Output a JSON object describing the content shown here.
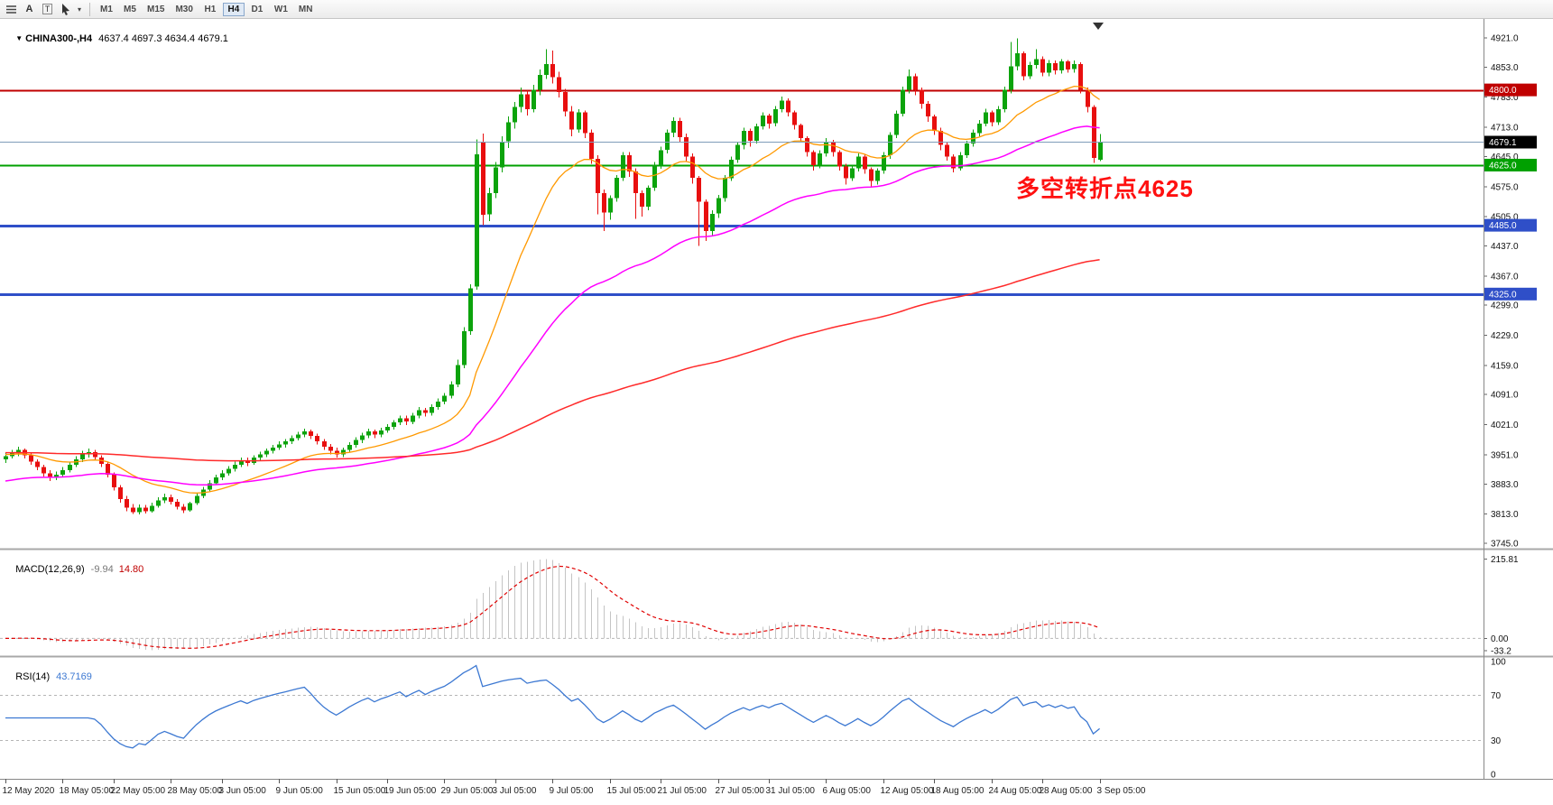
{
  "toolbar": {
    "icons": [
      {
        "name": "chart-list-icon"
      },
      {
        "name": "font-icon",
        "glyph": "A"
      },
      {
        "name": "text-label-icon",
        "glyph": "T"
      },
      {
        "name": "cursor-tool-icon"
      },
      {
        "name": "dropdown-caret-icon",
        "glyph": "▾"
      }
    ],
    "timeframes": [
      {
        "label": "M1"
      },
      {
        "label": "M5"
      },
      {
        "label": "M15"
      },
      {
        "label": "M30"
      },
      {
        "label": "H1"
      },
      {
        "label": "H4",
        "active": true
      },
      {
        "label": "D1"
      },
      {
        "label": "W1"
      },
      {
        "label": "MN"
      }
    ]
  },
  "header": {
    "collapse_icon": "▼",
    "symbol": "CHINA300-,H4",
    "ohlc": "4637.4 4697.3 4634.4 4679.1"
  },
  "chart_data": {
    "type": "candlestick",
    "symbol": "CHINA300-",
    "timeframe": "H4",
    "candle_colors": {
      "up": "#0ca30c",
      "down": "#e80f0f"
    },
    "price_axis_ticks": [
      "4921.0",
      "4853.0",
      "4783.0",
      "4713.0",
      "4645.0",
      "4575.0",
      "4505.0",
      "4437.0",
      "4367.0",
      "4299.0",
      "4229.0",
      "4159.0",
      "4091.0",
      "4021.0",
      "3951.0",
      "3883.0",
      "3813.0",
      "3745.0"
    ],
    "hlines": [
      {
        "price": 4800.0,
        "label": "4800.0",
        "color": "#c00000",
        "width": 2
      },
      {
        "price": 4625.0,
        "label": "4625.0",
        "color": "#00a000",
        "width": 2
      },
      {
        "price": 4485.0,
        "label": "4485.0",
        "color": "#2f4fc8",
        "width": 3
      },
      {
        "price": 4325.0,
        "label": "4325.0",
        "color": "#2f4fc8",
        "width": 3
      }
    ],
    "current_price": {
      "value": 4679.1,
      "label": "4679.1",
      "line_color": "#7f9db9",
      "badge_color": "#000000"
    },
    "moving_averages": [
      {
        "name": "ma-fast-orange",
        "period": 20,
        "seed": 3952,
        "color": "#ff9900",
        "width": 1.3
      },
      {
        "name": "ma-mid-magenta",
        "period": 60,
        "seed": 3888,
        "color": "#ff00ff",
        "width": 1.5
      },
      {
        "name": "ma-slow-red",
        "period": 220,
        "seed": 3956,
        "color": "#ff2a2a",
        "width": 1.5
      }
    ],
    "macd": {
      "title": "MACD(12,26,9)",
      "value_main": "-9.94",
      "value_signal": "14.80",
      "histogram_color": "#c4c4c4",
      "signal_color": "#e00000",
      "scale": [
        {
          "label": "215.81",
          "value": 215.81
        },
        {
          "label": "0.00",
          "value": 0.0
        },
        {
          "label": "-33.2",
          "value": -33.2
        }
      ]
    },
    "rsi": {
      "title": "RSI(14)",
      "value": "43.7169",
      "period": 14,
      "line_color": "#3c78d2",
      "levels": [
        {
          "label": "100",
          "value": 100
        },
        {
          "label": "70",
          "value": 70
        },
        {
          "label": "30",
          "value": 30
        },
        {
          "label": "0",
          "value": 0
        }
      ]
    },
    "annotation": {
      "text": "多空转折点4625",
      "color": "#ff1010"
    },
    "time_axis": [
      {
        "label": "12 May 2020",
        "bar": 0
      },
      {
        "label": "18 May 05:00",
        "bar": 9
      },
      {
        "label": "22 May 05:00",
        "bar": 17
      },
      {
        "label": "28 May 05:00",
        "bar": 26
      },
      {
        "label": "3 Jun 05:00",
        "bar": 34
      },
      {
        "label": "9 Jun 05:00",
        "bar": 43
      },
      {
        "label": "15 Jun 05:00",
        "bar": 52
      },
      {
        "label": "19 Jun 05:00",
        "bar": 60
      },
      {
        "label": "29 Jun 05:00",
        "bar": 69
      },
      {
        "label": "3 Jul 05:00",
        "bar": 77
      },
      {
        "label": "9 Jul 05:00",
        "bar": 86
      },
      {
        "label": "15 Jul 05:00",
        "bar": 95
      },
      {
        "label": "21 Jul 05:00",
        "bar": 103
      },
      {
        "label": "27 Jul 05:00",
        "bar": 112
      },
      {
        "label": "31 Jul 05:00",
        "bar": 120
      },
      {
        "label": "6 Aug 05:00",
        "bar": 129
      },
      {
        "label": "12 Aug 05:00",
        "bar": 138
      },
      {
        "label": "18 Aug 05:00",
        "bar": 146
      },
      {
        "label": "24 Aug 05:00",
        "bar": 155
      },
      {
        "label": "28 Aug 05:00",
        "bar": 163
      },
      {
        "label": "3 Sep 05:00",
        "bar": 172
      }
    ],
    "candles": [
      [
        3940,
        3956,
        3932,
        3948
      ],
      [
        3948,
        3962,
        3942,
        3955
      ],
      [
        3955,
        3970,
        3948,
        3962
      ],
      [
        3962,
        3966,
        3942,
        3950
      ],
      [
        3950,
        3955,
        3928,
        3935
      ],
      [
        3935,
        3940,
        3915,
        3922
      ],
      [
        3922,
        3928,
        3900,
        3908
      ],
      [
        3908,
        3915,
        3890,
        3898
      ],
      [
        3898,
        3912,
        3892,
        3905
      ],
      [
        3905,
        3922,
        3898,
        3915
      ],
      [
        3915,
        3935,
        3910,
        3928
      ],
      [
        3928,
        3948,
        3922,
        3940
      ],
      [
        3940,
        3960,
        3934,
        3952
      ],
      [
        3952,
        3965,
        3944,
        3957
      ],
      [
        3957,
        3962,
        3938,
        3945
      ],
      [
        3945,
        3950,
        3922,
        3930
      ],
      [
        3930,
        3935,
        3898,
        3905
      ],
      [
        3905,
        3910,
        3868,
        3875
      ],
      [
        3875,
        3880,
        3840,
        3848
      ],
      [
        3848,
        3855,
        3820,
        3828
      ],
      [
        3828,
        3836,
        3813,
        3818
      ],
      [
        3818,
        3835,
        3812,
        3828
      ],
      [
        3828,
        3834,
        3814,
        3820
      ],
      [
        3820,
        3840,
        3816,
        3832
      ],
      [
        3832,
        3852,
        3828,
        3845
      ],
      [
        3845,
        3860,
        3838,
        3852
      ],
      [
        3852,
        3858,
        3835,
        3842
      ],
      [
        3842,
        3848,
        3824,
        3830
      ],
      [
        3830,
        3836,
        3815,
        3822
      ],
      [
        3822,
        3842,
        3818,
        3838
      ],
      [
        3838,
        3862,
        3834,
        3855
      ],
      [
        3855,
        3876,
        3850,
        3870
      ],
      [
        3870,
        3892,
        3866,
        3885
      ],
      [
        3885,
        3905,
        3880,
        3898
      ],
      [
        3898,
        3915,
        3892,
        3908
      ],
      [
        3908,
        3925,
        3902,
        3918
      ],
      [
        3918,
        3935,
        3912,
        3928
      ],
      [
        3928,
        3945,
        3922,
        3938
      ],
      [
        3938,
        3944,
        3925,
        3932
      ],
      [
        3932,
        3950,
        3928,
        3944
      ],
      [
        3944,
        3958,
        3938,
        3952
      ],
      [
        3952,
        3966,
        3946,
        3960
      ],
      [
        3960,
        3974,
        3954,
        3968
      ],
      [
        3968,
        3982,
        3962,
        3975
      ],
      [
        3975,
        3988,
        3968,
        3982
      ],
      [
        3982,
        3996,
        3976,
        3990
      ],
      [
        3990,
        4004,
        3984,
        3998
      ],
      [
        3998,
        4012,
        3992,
        4005
      ],
      [
        4005,
        4010,
        3988,
        3995
      ],
      [
        3995,
        4000,
        3975,
        3982
      ],
      [
        3982,
        3988,
        3962,
        3970
      ],
      [
        3970,
        3976,
        3952,
        3960
      ],
      [
        3960,
        3968,
        3945,
        3952
      ],
      [
        3952,
        3968,
        3946,
        3962
      ],
      [
        3962,
        3980,
        3956,
        3974
      ],
      [
        3974,
        3992,
        3968,
        3985
      ],
      [
        3985,
        4002,
        3978,
        3996
      ],
      [
        3996,
        4012,
        3990,
        4005
      ],
      [
        4005,
        4010,
        3990,
        3998
      ],
      [
        3998,
        4014,
        3992,
        4008
      ],
      [
        4008,
        4022,
        4002,
        4016
      ],
      [
        4016,
        4032,
        4010,
        4026
      ],
      [
        4026,
        4042,
        4020,
        4036
      ],
      [
        4036,
        4042,
        4020,
        4028
      ],
      [
        4028,
        4048,
        4022,
        4042
      ],
      [
        4042,
        4062,
        4036,
        4055
      ],
      [
        4055,
        4060,
        4040,
        4048
      ],
      [
        4048,
        4068,
        4042,
        4062
      ],
      [
        4062,
        4082,
        4056,
        4075
      ],
      [
        4075,
        4095,
        4068,
        4088
      ],
      [
        4088,
        4122,
        4082,
        4115
      ],
      [
        4115,
        4172,
        4108,
        4160
      ],
      [
        4160,
        4248,
        4152,
        4238
      ],
      [
        4238,
        4348,
        4230,
        4338
      ],
      [
        4342,
        4685,
        4335,
        4650
      ],
      [
        4680,
        4698,
        4485,
        4510
      ],
      [
        4510,
        4572,
        4495,
        4560
      ],
      [
        4560,
        4632,
        4548,
        4620
      ],
      [
        4620,
        4692,
        4608,
        4680
      ],
      [
        4680,
        4738,
        4665,
        4725
      ],
      [
        4725,
        4772,
        4710,
        4760
      ],
      [
        4760,
        4805,
        4748,
        4790
      ],
      [
        4790,
        4798,
        4740,
        4755
      ],
      [
        4755,
        4812,
        4748,
        4800
      ],
      [
        4800,
        4848,
        4788,
        4835
      ],
      [
        4835,
        4895,
        4825,
        4860
      ],
      [
        4860,
        4892,
        4815,
        4830
      ],
      [
        4830,
        4842,
        4782,
        4795
      ],
      [
        4795,
        4802,
        4738,
        4750
      ],
      [
        4750,
        4762,
        4692,
        4708
      ],
      [
        4708,
        4755,
        4700,
        4748
      ],
      [
        4748,
        4752,
        4688,
        4700
      ],
      [
        4700,
        4708,
        4628,
        4640
      ],
      [
        4640,
        4648,
        4510,
        4560
      ],
      [
        4560,
        4568,
        4472,
        4515
      ],
      [
        4515,
        4555,
        4498,
        4548
      ],
      [
        4548,
        4602,
        4540,
        4595
      ],
      [
        4595,
        4655,
        4588,
        4648
      ],
      [
        4648,
        4655,
        4598,
        4610
      ],
      [
        4610,
        4618,
        4500,
        4560
      ],
      [
        4560,
        4566,
        4505,
        4528
      ],
      [
        4528,
        4578,
        4520,
        4572
      ],
      [
        4572,
        4632,
        4565,
        4625
      ],
      [
        4625,
        4668,
        4616,
        4660
      ],
      [
        4660,
        4708,
        4652,
        4700
      ],
      [
        4700,
        4736,
        4690,
        4728
      ],
      [
        4728,
        4735,
        4678,
        4690
      ],
      [
        4690,
        4698,
        4632,
        4645
      ],
      [
        4645,
        4652,
        4582,
        4595
      ],
      [
        4595,
        4600,
        4437,
        4540
      ],
      [
        4540,
        4545,
        4448,
        4472
      ],
      [
        4472,
        4520,
        4462,
        4512
      ],
      [
        4512,
        4556,
        4502,
        4548
      ],
      [
        4548,
        4602,
        4540,
        4595
      ],
      [
        4595,
        4645,
        4588,
        4638
      ],
      [
        4638,
        4680,
        4630,
        4672
      ],
      [
        4672,
        4712,
        4662,
        4705
      ],
      [
        4705,
        4710,
        4668,
        4682
      ],
      [
        4682,
        4722,
        4675,
        4715
      ],
      [
        4715,
        4748,
        4708,
        4740
      ],
      [
        4740,
        4745,
        4710,
        4722
      ],
      [
        4722,
        4762,
        4715,
        4755
      ],
      [
        4755,
        4785,
        4748,
        4775
      ],
      [
        4775,
        4780,
        4738,
        4748
      ],
      [
        4748,
        4752,
        4708,
        4718
      ],
      [
        4718,
        4722,
        4678,
        4688
      ],
      [
        4688,
        4692,
        4645,
        4655
      ],
      [
        4655,
        4660,
        4612,
        4625
      ],
      [
        4625,
        4660,
        4618,
        4652
      ],
      [
        4652,
        4688,
        4645,
        4680
      ],
      [
        4680,
        4684,
        4645,
        4655
      ],
      [
        4655,
        4660,
        4612,
        4622
      ],
      [
        4622,
        4628,
        4580,
        4595
      ],
      [
        4595,
        4625,
        4588,
        4618
      ],
      [
        4618,
        4652,
        4610,
        4645
      ],
      [
        4645,
        4650,
        4605,
        4615
      ],
      [
        4615,
        4620,
        4575,
        4588
      ],
      [
        4588,
        4618,
        4580,
        4612
      ],
      [
        4612,
        4655,
        4605,
        4648
      ],
      [
        4648,
        4702,
        4640,
        4695
      ],
      [
        4695,
        4752,
        4688,
        4745
      ],
      [
        4745,
        4808,
        4738,
        4800
      ],
      [
        4800,
        4848,
        4792,
        4832
      ],
      [
        4832,
        4838,
        4788,
        4800
      ],
      [
        4800,
        4806,
        4756,
        4768
      ],
      [
        4768,
        4774,
        4726,
        4738
      ],
      [
        4738,
        4742,
        4695,
        4705
      ],
      [
        4705,
        4712,
        4660,
        4672
      ],
      [
        4672,
        4678,
        4635,
        4645
      ],
      [
        4645,
        4650,
        4608,
        4618
      ],
      [
        4618,
        4655,
        4612,
        4648
      ],
      [
        4648,
        4682,
        4642,
        4675
      ],
      [
        4675,
        4708,
        4668,
        4700
      ],
      [
        4700,
        4730,
        4692,
        4722
      ],
      [
        4722,
        4756,
        4715,
        4748
      ],
      [
        4748,
        4752,
        4715,
        4725
      ],
      [
        4725,
        4762,
        4718,
        4755
      ],
      [
        4755,
        4808,
        4748,
        4800
      ],
      [
        4800,
        4912,
        4792,
        4855
      ],
      [
        4855,
        4920,
        4845,
        4885
      ],
      [
        4885,
        4890,
        4822,
        4832
      ],
      [
        4832,
        4865,
        4825,
        4858
      ],
      [
        4858,
        4895,
        4850,
        4872
      ],
      [
        4872,
        4878,
        4832,
        4840
      ],
      [
        4840,
        4870,
        4832,
        4862
      ],
      [
        4862,
        4868,
        4836,
        4845
      ],
      [
        4845,
        4872,
        4838,
        4866
      ],
      [
        4866,
        4870,
        4840,
        4848
      ],
      [
        4848,
        4868,
        4840,
        4860
      ],
      [
        4860,
        4864,
        4792,
        4800
      ],
      [
        4800,
        4805,
        4748,
        4760
      ],
      [
        4760,
        4765,
        4630,
        4642
      ],
      [
        4637.4,
        4697.3,
        4634.4,
        4679.1
      ]
    ]
  }
}
